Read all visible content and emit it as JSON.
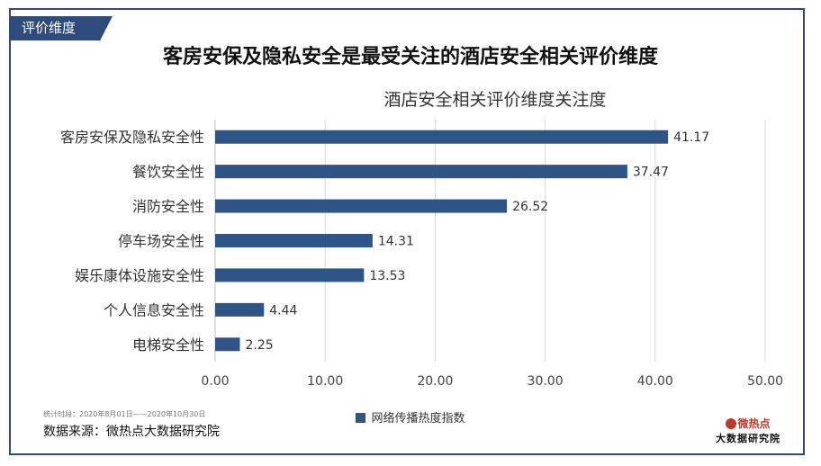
{
  "section_tag": "评价维度",
  "headline": "客房安保及隐私安全是最受关注的酒店安全相关评价维度",
  "period_note": "统计时段：2020年8月01日——2020年10月30日",
  "source": "数据来源：微热点大数据研究院",
  "logo": {
    "top": "微热点",
    "bottom": "大数据研究院"
  },
  "colors": {
    "bar": "#2f5487",
    "frame": "#2f4b7c"
  },
  "chart_data": {
    "type": "bar",
    "orientation": "horizontal",
    "title": "酒店安全相关评价维度关注度",
    "categories": [
      "客房安保及隐私安全性",
      "餐饮安全性",
      "消防安全性",
      "停车场安全性",
      "娱乐康体设施安全性",
      "个人信息安全性",
      "电梯安全性"
    ],
    "series": [
      {
        "name": "网络传播热度指数",
        "values": [
          41.17,
          37.47,
          26.52,
          14.31,
          13.53,
          4.44,
          2.25
        ]
      }
    ],
    "value_labels": [
      "41.17",
      "37.47",
      "26.52",
      "14.31",
      "13.53",
      "4.44",
      "2.25"
    ],
    "xlim": [
      0,
      50
    ],
    "xticks": [
      "0.00",
      "10.00",
      "20.00",
      "30.00",
      "40.00",
      "50.00"
    ],
    "grid": true,
    "legend_position": "bottom"
  }
}
